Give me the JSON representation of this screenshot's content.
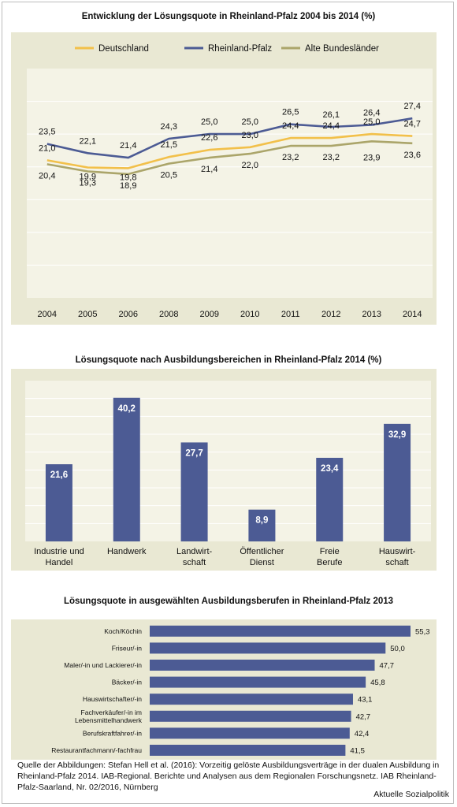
{
  "chart_data": [
    {
      "type": "line",
      "title": "Entwicklung der Lösungsquote in Rheinland-Pfalz 2004 bis 2014 (%)",
      "categories": [
        "2004",
        "2005",
        "2006",
        "2008",
        "2009",
        "2010",
        "2011",
        "2012",
        "2013",
        "2014"
      ],
      "ylim": [
        0,
        35
      ],
      "grid": true,
      "legend": "top",
      "series": [
        {
          "name": "Deutschland",
          "color": "#f2c04a",
          "values": [
            21.0,
            19.9,
            19.8,
            21.5,
            22.6,
            23.0,
            24.4,
            24.4,
            25.0,
            24.7
          ]
        },
        {
          "name": "Rheinland-Pfalz",
          "color": "#4c5b94",
          "values": [
            23.5,
            22.1,
            21.4,
            24.3,
            25.0,
            25.0,
            26.5,
            26.1,
            26.4,
            27.4
          ]
        },
        {
          "name": "Alte Bundesländer",
          "color": "#aba56a",
          "values": [
            20.4,
            19.3,
            18.9,
            20.5,
            21.4,
            22.0,
            23.2,
            23.2,
            23.9,
            23.6
          ]
        }
      ],
      "labels": {
        "Deutschland": [
          "21,0",
          "19,9",
          "19,8",
          "21,5",
          "22,6",
          "23,0",
          "24,4",
          "24,4",
          "25,0",
          "24,7"
        ],
        "Rheinland-Pfalz": [
          "23,5",
          "22,1",
          "21,4",
          "24,3",
          "25,0",
          "25,0",
          "26,5",
          "26,1",
          "26,4",
          "27,4"
        ],
        "Alte Bundesländer": [
          "20,4",
          "19,3",
          "18,9",
          "20,5",
          "21,4",
          "22,0",
          "23,2",
          "23,2",
          "23,9",
          "23,6"
        ]
      }
    },
    {
      "type": "bar",
      "title": "Lösungsquote nach Ausbildungsbereichen in Rheinland-Pfalz 2014 (%)",
      "categories": [
        [
          "Industrie und",
          "Handel"
        ],
        [
          "Handwerk"
        ],
        [
          "Landwirt-",
          "schaft"
        ],
        [
          "Öffentlicher",
          "Dienst"
        ],
        [
          "Freie",
          "Berufe"
        ],
        [
          "Hauswirt-",
          "schaft"
        ]
      ],
      "values": [
        21.6,
        40.2,
        27.7,
        8.9,
        23.4,
        32.9
      ],
      "value_labels": [
        "21,6",
        "40,2",
        "27,7",
        "8,9",
        "23,4",
        "32,9"
      ],
      "ylim": [
        0,
        45
      ],
      "grid": true,
      "color": "#4c5b94"
    },
    {
      "type": "bar",
      "orientation": "horizontal",
      "title": "Lösungsquote in ausgewählten Ausbildungsberufen in Rheinland-Pfalz 2013",
      "categories": [
        "Koch/Köchin",
        "Friseur/-in",
        "Maler/-in und Lackierer/-in",
        "Bäcker/-in",
        "Hauswirtschafter/-in",
        "Fachverkäufer/-in im Lebensmittelhandwerk",
        "Berufskraftfahrer/-in",
        "Restaurantfachmann/-fachfrau"
      ],
      "category_lines": [
        [
          "Koch/Köchin"
        ],
        [
          "Friseur/-in"
        ],
        [
          "Maler/-in und Lackierer/-in"
        ],
        [
          "Bäcker/-in"
        ],
        [
          "Hauswirtschafter/-in"
        ],
        [
          "Fachverkäufer/-in im",
          "Lebensmittelhandwerk"
        ],
        [
          "Berufskraftfahrer/-in"
        ],
        [
          "Restaurantfachmann/-fachfrau"
        ]
      ],
      "values": [
        55.3,
        50.0,
        47.7,
        45.8,
        43.1,
        42.7,
        42.4,
        41.5
      ],
      "value_labels": [
        "55,3",
        "50,0",
        "47,7",
        "45,8",
        "43,1",
        "42,7",
        "42,4",
        "41,5"
      ],
      "color": "#4c5b94"
    }
  ],
  "source": "Quelle der Abbildungen: Stefan Hell et al. (2016): Vorzeitig gelöste Ausbildungsverträge in der dualen Ausbildung in Rheinland-Pfalz 2014. IAB-Regional. Berichte und Analysen aus dem Regionalen Forschungsnetz. IAB Rheinland-Pfalz-Saarland, Nr. 02/2016, Nürnberg",
  "brand": "Aktuelle Sozialpolitik"
}
